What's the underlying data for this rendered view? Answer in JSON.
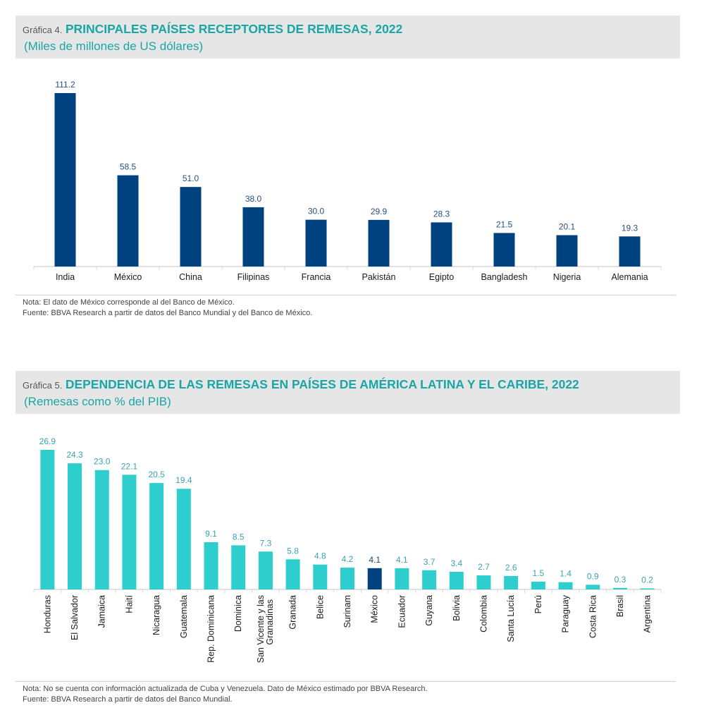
{
  "charts": [
    {
      "label": "Gráfica 4.",
      "title": "PRINCIPALES PAÍSES RECEPTORES DE REMESAS, 2022",
      "subtitle": "(Miles de millones de US dólares)",
      "note": "Nota: El dato de México corresponde al del Banco de México.",
      "source": "Fuente: BBVA Research a partir de datos del Banco Mundial y del Banco de México."
    },
    {
      "label": "Gráfica 5.",
      "title": "DEPENDENCIA DE LAS REMESAS EN PAÍSES DE AMÉRICA LATINA Y EL CARIBE, 2022",
      "subtitle": "(Remesas como % del PIB)",
      "note": "Nota: No se cuenta con información actualizada de Cuba y Venezuela. Dato de México estimado por BBVA Research.",
      "source": "Fuente: BBVA Research a partir de datos del Banco Mundial."
    }
  ],
  "colors": {
    "dark_blue": "#00427f",
    "teal": "#2ecece",
    "title_teal": "#1aa6a6",
    "axis": "#d9d9d9"
  },
  "chart_data": [
    {
      "type": "bar",
      "title": "PRINCIPALES PAÍSES RECEPTORES DE REMESAS, 2022",
      "subtitle": "(Miles de millones de US dólares)",
      "xlabel": "",
      "ylabel": "",
      "categories": [
        "India",
        "México",
        "China",
        "Filipinas",
        "Francia",
        "Pakistán",
        "Egipto",
        "Bangladesh",
        "Nigeria",
        "Alemania"
      ],
      "values": [
        111.2,
        58.5,
        51.0,
        38.0,
        30.0,
        29.9,
        28.3,
        21.5,
        20.1,
        19.3
      ],
      "data_labels": [
        "111.2",
        "58.5",
        "51.0",
        "38.0",
        "30.0",
        "29.9",
        "28.3",
        "21.5",
        "20.1",
        "19.3"
      ],
      "ylim": [
        0,
        111.2
      ],
      "grid": false,
      "legend": "none",
      "bar_color": "#00427f",
      "label_color": "#2a4f7f"
    },
    {
      "type": "bar",
      "title": "DEPENDENCIA DE LAS REMESAS EN PAÍSES DE AMÉRICA LATINA Y EL CARIBE, 2022",
      "subtitle": "(Remesas como % del PIB)",
      "xlabel": "",
      "ylabel": "",
      "categories": [
        "Honduras",
        "El Salvador",
        "Jamaica",
        "Haití",
        "Nicaragua",
        "Guatemala",
        "Rep. Dominicana",
        "Dominica",
        "San Vicente y las Granadinas",
        "Granada",
        "Belice",
        "Surinam",
        "México",
        "Ecuador",
        "Guyana",
        "Bolivia",
        "Colombia",
        "Santa Lucía",
        "Perú",
        "Paraguay",
        "Costa Rica",
        "Brasil",
        "Argentina"
      ],
      "values": [
        26.9,
        24.3,
        23.0,
        22.1,
        20.5,
        19.4,
        9.1,
        8.5,
        7.3,
        5.8,
        4.8,
        4.2,
        4.1,
        4.1,
        3.7,
        3.4,
        2.7,
        2.6,
        1.5,
        1.4,
        0.9,
        0.3,
        0.2
      ],
      "data_labels": [
        "26.9",
        "24.3",
        "23.0",
        "22.1",
        "20.5",
        "19.4",
        "9.1",
        "8.5",
        "7.3",
        "5.8",
        "4.8",
        "4.2",
        "4.1",
        "4.1",
        "3.7",
        "3.4",
        "2.7",
        "2.6",
        "1.5",
        "1.4",
        "0.9",
        "0.3",
        "0.2"
      ],
      "highlight": "México",
      "ylim": [
        0,
        26.9
      ],
      "grid": false,
      "legend": "none",
      "bar_color": "#2ecece",
      "highlight_color": "#00427f",
      "label_color": "#3ba3b0",
      "highlight_label_color": "#1f3f6e"
    }
  ]
}
